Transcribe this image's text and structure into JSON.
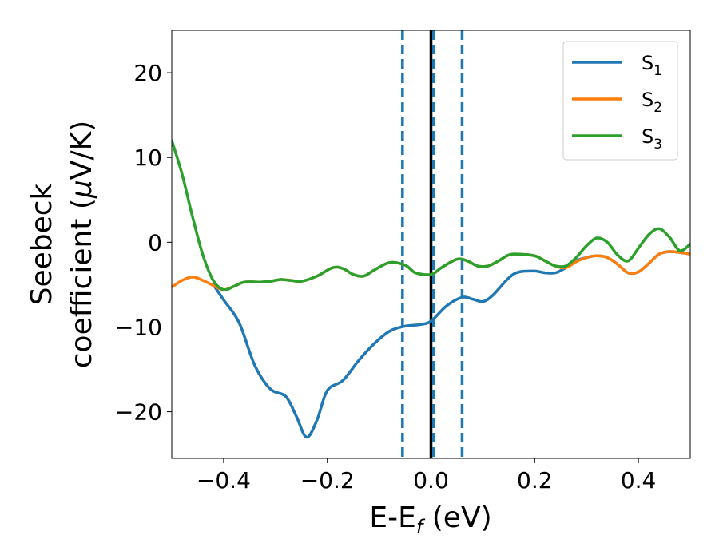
{
  "chart_data": {
    "type": "line",
    "xlabel": {
      "main": "E-E",
      "sub": "f",
      "tail": " (eV)"
    },
    "ylabel": {
      "line1": "Seebeck",
      "line2_pre": "coefficient  (",
      "mu": "μ",
      "line2_post": "V/K)"
    },
    "xlim": [
      -0.5,
      0.5
    ],
    "ylim": [
      -25.5,
      25
    ],
    "xticks": [
      -0.4,
      -0.2,
      0.0,
      0.2,
      0.4
    ],
    "xtick_labels": [
      "−0.4",
      "−0.2",
      "0.0",
      "0.2",
      "0.4"
    ],
    "yticks": [
      -20,
      -10,
      0,
      10,
      20
    ],
    "ytick_labels": [
      "−20",
      "−10",
      "0",
      "10",
      "20"
    ],
    "legend_position": "top-right",
    "vlines": [
      {
        "x": -0.055,
        "style": "dashed",
        "color": "#1f77b4"
      },
      {
        "x": 0.0,
        "style": "solid",
        "color": "#000000"
      },
      {
        "x": 0.005,
        "style": "dashed",
        "color": "#1f77b4"
      },
      {
        "x": 0.06,
        "style": "dashed",
        "color": "#1f77b4"
      }
    ],
    "series": [
      {
        "name": "S",
        "sub": "1",
        "color": "#1f77b4",
        "points": [
          [
            -0.42,
            -5
          ],
          [
            -0.4,
            -6.8
          ],
          [
            -0.37,
            -9.5
          ],
          [
            -0.34,
            -14.5
          ],
          [
            -0.31,
            -17.3
          ],
          [
            -0.28,
            -18.2
          ],
          [
            -0.26,
            -20.5
          ],
          [
            -0.24,
            -23
          ],
          [
            -0.22,
            -21
          ],
          [
            -0.2,
            -17.5
          ],
          [
            -0.17,
            -16.3
          ],
          [
            -0.14,
            -14
          ],
          [
            -0.11,
            -12
          ],
          [
            -0.08,
            -10.5
          ],
          [
            -0.05,
            -9.9
          ],
          [
            -0.02,
            -9.7
          ],
          [
            0.0,
            -9.3
          ],
          [
            0.03,
            -7.5
          ],
          [
            0.06,
            -6.5
          ],
          [
            0.08,
            -6.7
          ],
          [
            0.1,
            -7.0
          ],
          [
            0.12,
            -6.2
          ],
          [
            0.15,
            -4.2
          ],
          [
            0.17,
            -3.5
          ],
          [
            0.2,
            -3.4
          ],
          [
            0.22,
            -3.6
          ],
          [
            0.24,
            -3.6
          ],
          [
            0.26,
            -3.0
          ],
          [
            0.28,
            -2.2
          ],
          [
            0.3,
            -1.8
          ],
          [
            0.32,
            -1.6
          ],
          [
            0.34,
            -1.8
          ],
          [
            0.36,
            -2.6
          ],
          [
            0.38,
            -3.6
          ],
          [
            0.4,
            -3.5
          ],
          [
            0.42,
            -2.5
          ],
          [
            0.44,
            -1.4
          ],
          [
            0.46,
            -1.1
          ],
          [
            0.48,
            -1.2
          ],
          [
            0.5,
            -1.4
          ]
        ]
      },
      {
        "name": "S",
        "sub": "2",
        "color": "#ff7f0e",
        "points": [
          [
            -0.5,
            -5.3
          ],
          [
            -0.48,
            -4.5
          ],
          [
            -0.46,
            -4.1
          ],
          [
            -0.44,
            -4.5
          ],
          [
            -0.42,
            -5.1
          ],
          [
            -0.4,
            -5.6
          ],
          [
            -0.38,
            -5.2
          ],
          [
            -0.36,
            -4.7
          ],
          [
            -0.33,
            -4.7
          ],
          [
            -0.31,
            -4.6
          ],
          [
            -0.29,
            -4.4
          ],
          [
            -0.27,
            -4.5
          ],
          [
            -0.25,
            -4.6
          ],
          [
            -0.22,
            -4.0
          ],
          [
            -0.19,
            -3.0
          ],
          [
            -0.17,
            -3.1
          ],
          [
            -0.15,
            -3.8
          ],
          [
            -0.13,
            -4.0
          ],
          [
            -0.11,
            -3.3
          ],
          [
            -0.08,
            -2.4
          ],
          [
            -0.05,
            -2.7
          ],
          [
            -0.03,
            -3.6
          ],
          [
            0.0,
            -3.8
          ],
          [
            0.02,
            -3.0
          ],
          [
            0.05,
            -2.0
          ],
          [
            0.07,
            -2.2
          ],
          [
            0.09,
            -2.8
          ],
          [
            0.11,
            -2.8
          ],
          [
            0.13,
            -2.2
          ],
          [
            0.15,
            -1.5
          ],
          [
            0.17,
            -1.4
          ],
          [
            0.2,
            -1.6
          ],
          [
            0.22,
            -2.2
          ],
          [
            0.24,
            -2.8
          ],
          [
            0.26,
            -3.0
          ],
          [
            0.28,
            -2.3
          ],
          [
            0.3,
            -1.8
          ],
          [
            0.32,
            -1.6
          ],
          [
            0.34,
            -1.8
          ],
          [
            0.36,
            -2.6
          ],
          [
            0.38,
            -3.6
          ],
          [
            0.4,
            -3.5
          ],
          [
            0.42,
            -2.5
          ],
          [
            0.44,
            -1.4
          ],
          [
            0.46,
            -1.1
          ],
          [
            0.48,
            -1.2
          ],
          [
            0.5,
            -1.4
          ]
        ]
      },
      {
        "name": "S",
        "sub": "3",
        "color": "#2ca02c",
        "points": [
          [
            -0.5,
            12
          ],
          [
            -0.48,
            8
          ],
          [
            -0.46,
            3
          ],
          [
            -0.44,
            -1.5
          ],
          [
            -0.42,
            -4.5
          ],
          [
            -0.4,
            -5.6
          ],
          [
            -0.38,
            -5.2
          ],
          [
            -0.36,
            -4.7
          ],
          [
            -0.33,
            -4.7
          ],
          [
            -0.31,
            -4.6
          ],
          [
            -0.29,
            -4.4
          ],
          [
            -0.27,
            -4.5
          ],
          [
            -0.25,
            -4.6
          ],
          [
            -0.22,
            -4.0
          ],
          [
            -0.19,
            -3.0
          ],
          [
            -0.17,
            -3.1
          ],
          [
            -0.15,
            -3.8
          ],
          [
            -0.13,
            -4.0
          ],
          [
            -0.11,
            -3.3
          ],
          [
            -0.08,
            -2.4
          ],
          [
            -0.05,
            -2.7
          ],
          [
            -0.03,
            -3.6
          ],
          [
            0.0,
            -3.8
          ],
          [
            0.02,
            -3.0
          ],
          [
            0.05,
            -2.0
          ],
          [
            0.07,
            -2.2
          ],
          [
            0.09,
            -2.8
          ],
          [
            0.11,
            -2.8
          ],
          [
            0.13,
            -2.2
          ],
          [
            0.15,
            -1.5
          ],
          [
            0.17,
            -1.4
          ],
          [
            0.2,
            -1.6
          ],
          [
            0.22,
            -2.2
          ],
          [
            0.24,
            -2.8
          ],
          [
            0.26,
            -2.8
          ],
          [
            0.28,
            -1.8
          ],
          [
            0.3,
            -0.4
          ],
          [
            0.32,
            0.5
          ],
          [
            0.34,
            0.0
          ],
          [
            0.36,
            -1.5
          ],
          [
            0.38,
            -2.2
          ],
          [
            0.4,
            -0.7
          ],
          [
            0.42,
            0.9
          ],
          [
            0.44,
            1.6
          ],
          [
            0.46,
            0.6
          ],
          [
            0.48,
            -1.0
          ],
          [
            0.5,
            -0.2
          ]
        ]
      }
    ]
  }
}
